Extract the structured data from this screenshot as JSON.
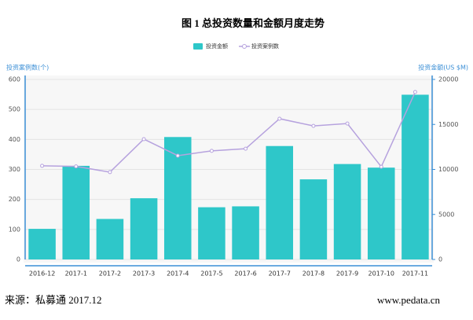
{
  "chart_data": {
    "type": "bar_line",
    "title": "图 1 总投资数量和金额月度走势",
    "ylabel": "投资案例数(个)",
    "y2label": "投资金额(US $M)",
    "categories": [
      "2016-12",
      "2017-1",
      "2017-2",
      "2017-3",
      "2017-4",
      "2017-5",
      "2017-6",
      "2017-7",
      "2017-8",
      "2017-9",
      "2017-10",
      "2017-11"
    ],
    "series": [
      {
        "name": "投资金额",
        "type": "bar",
        "axis": "y2",
        "color": "#2ec7c9",
        "values": [
          3400,
          10400,
          4500,
          6800,
          13600,
          5800,
          5900,
          12600,
          8900,
          10600,
          10200,
          18300
        ]
      },
      {
        "name": "投资案例数",
        "type": "line",
        "axis": "y",
        "color": "#b6a2de",
        "values": [
          312,
          310,
          291,
          401,
          346,
          362,
          369,
          469,
          445,
          453,
          309,
          558
        ]
      }
    ],
    "ylim": [
      0,
      600
    ],
    "yticks": [
      0,
      100,
      200,
      300,
      400,
      500,
      600
    ],
    "y2lim": [
      0,
      20000
    ],
    "y2ticks": [
      0,
      5000,
      10000,
      15000,
      20000
    ],
    "grid": true,
    "legend": "top"
  },
  "footer": {
    "source": "来源：私募通  2017.12",
    "website": "www.pedata.cn"
  }
}
